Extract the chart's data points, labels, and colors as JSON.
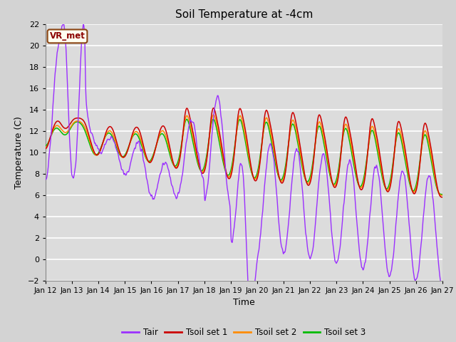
{
  "title": "Soil Temperature at -4cm",
  "xlabel": "Time",
  "ylabel": "Temperature (C)",
  "ylim": [
    -2,
    22
  ],
  "yticks": [
    -2,
    0,
    2,
    4,
    6,
    8,
    10,
    12,
    14,
    16,
    18,
    20,
    22
  ],
  "x_tick_labels": [
    "Jan 12",
    "Jan 13",
    "Jan 14",
    "Jan 15",
    "Jan 16",
    "Jan 17",
    "Jan 18",
    "Jan 19",
    "Jan 20",
    "Jan 21",
    "Jan 22",
    "Jan 23",
    "Jan 24",
    "Jan 25",
    "Jan 26",
    "Jan 27"
  ],
  "colors": {
    "Tair": "#9B30FF",
    "Tsoil1": "#CC0000",
    "Tsoil2": "#FF8C00",
    "Tsoil3": "#00BB00"
  },
  "legend_label": "VR_met",
  "plot_bg": "#DCDCDC",
  "fig_bg": "#D3D3D3",
  "grid_color": "#FFFFFF",
  "n_points": 2000
}
